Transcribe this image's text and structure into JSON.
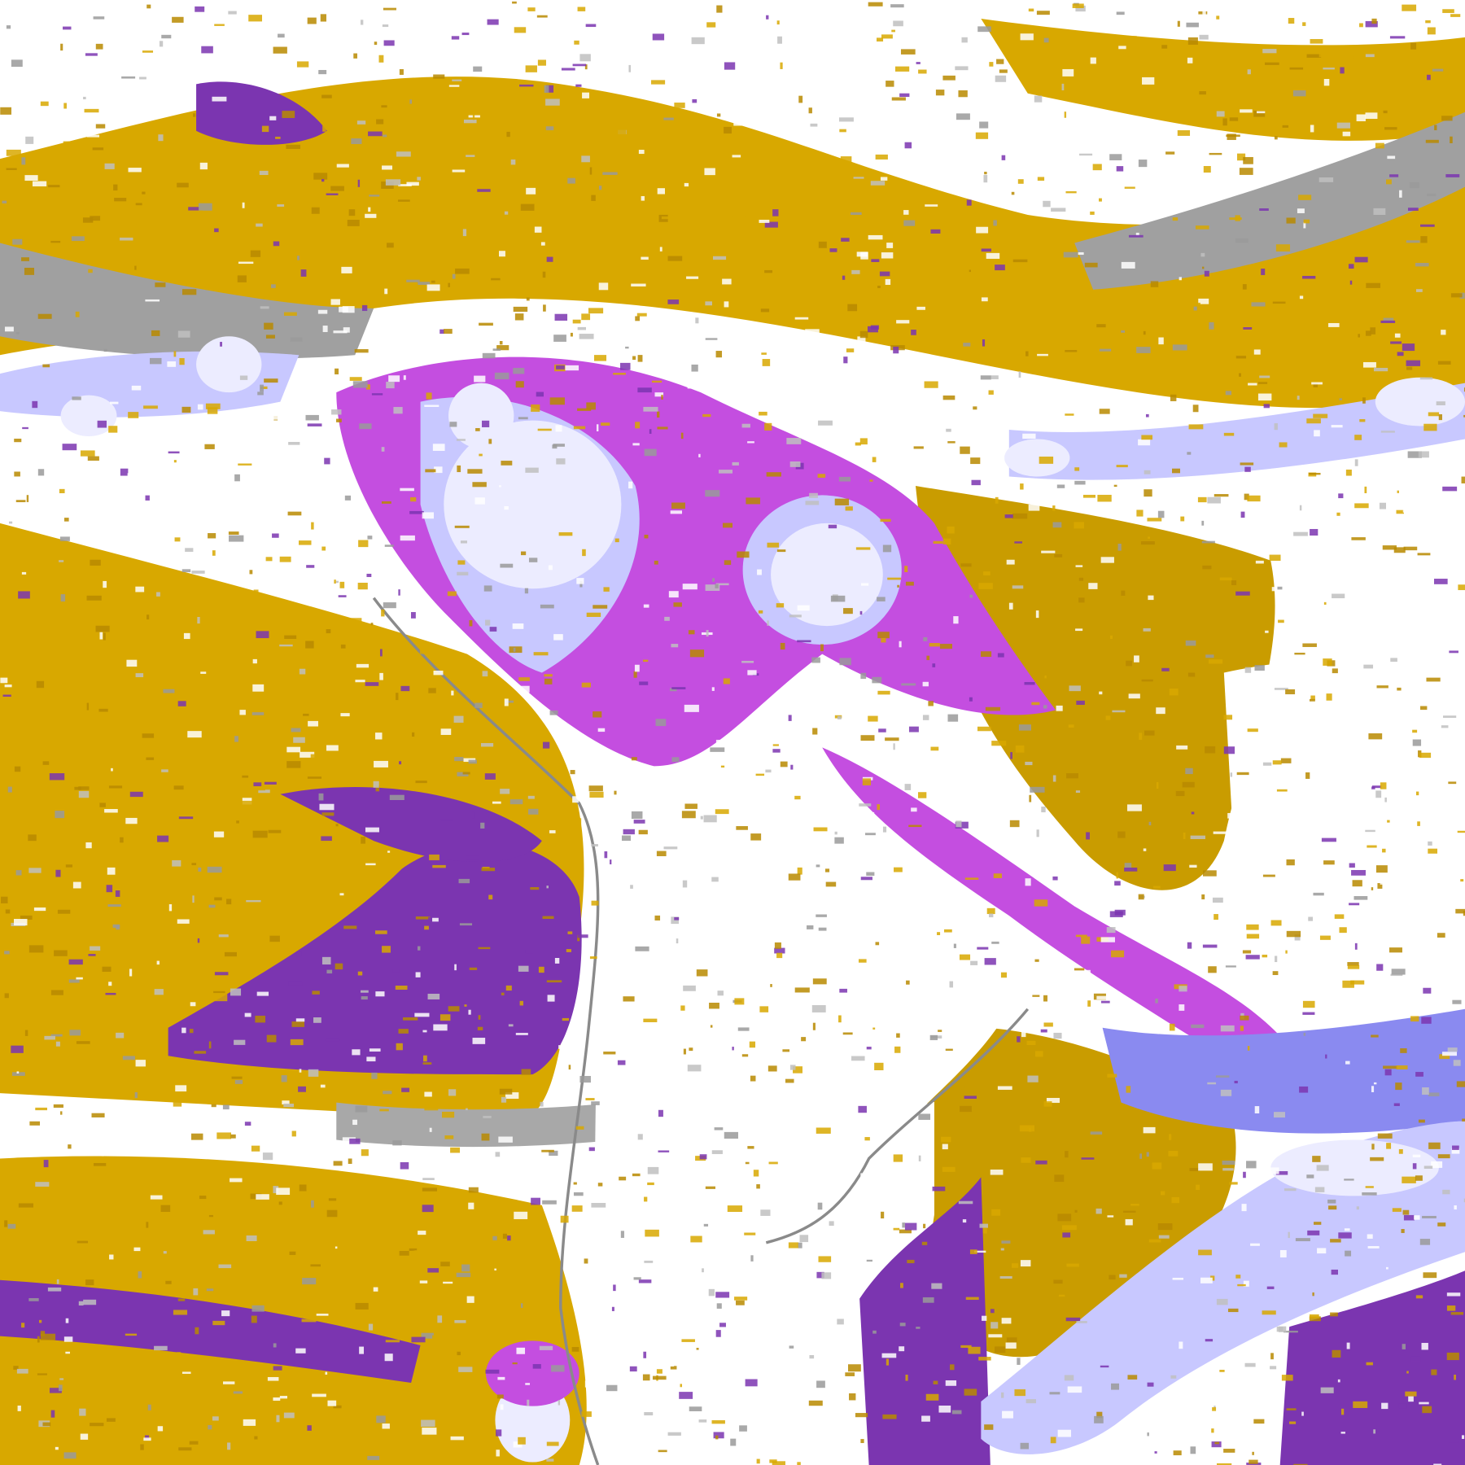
{
  "map": {
    "type": "satellite cloud-classification imagery",
    "palette": {
      "clear": "#ffffff",
      "gold": "#d8a800",
      "dark_gold": "#b88a00",
      "purple": "#7b35b0",
      "magenta": "#c44ee0",
      "blue": "#7a7af0",
      "lavender": "#c8c8ff",
      "pale": "#ececff",
      "grey": "#9a9a9a",
      "light_grey": "#c0c0c0"
    }
  }
}
